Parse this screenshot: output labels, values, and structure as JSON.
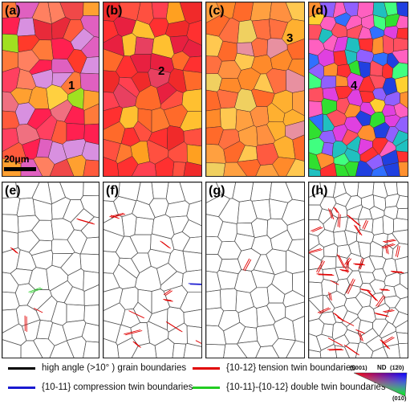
{
  "panels": [
    {
      "label": "(a)",
      "grain": "1",
      "kind": "ebsd"
    },
    {
      "label": "(b)",
      "grain": "2",
      "kind": "ebsd"
    },
    {
      "label": "(c)",
      "grain": "3",
      "kind": "ebsd"
    },
    {
      "label": "(d)",
      "grain": "4",
      "kind": "ebsd"
    },
    {
      "label": "(e)",
      "kind": "boundary"
    },
    {
      "label": "(f)",
      "kind": "boundary"
    },
    {
      "label": "(g)",
      "kind": "boundary"
    },
    {
      "label": "(h)",
      "kind": "boundary"
    }
  ],
  "scale_bar": "20μm",
  "legend": [
    {
      "text": "high angle (>10° ) grain boundaries",
      "color": "#000000"
    },
    {
      "text": "{10-12} tension twin boundaries",
      "color": "#e00000"
    },
    {
      "text": "{10-11} compression twin boundaries",
      "color": "#1a1ad0"
    },
    {
      "text": "{10-11}-{10-12} double twin boundaries",
      "color": "#22cc22"
    }
  ],
  "ipf_key": {
    "top_left": "(0001)",
    "nd": "ND",
    "top_right": "(1̅2̅0)",
    "bottom": "(01̅0)"
  }
}
